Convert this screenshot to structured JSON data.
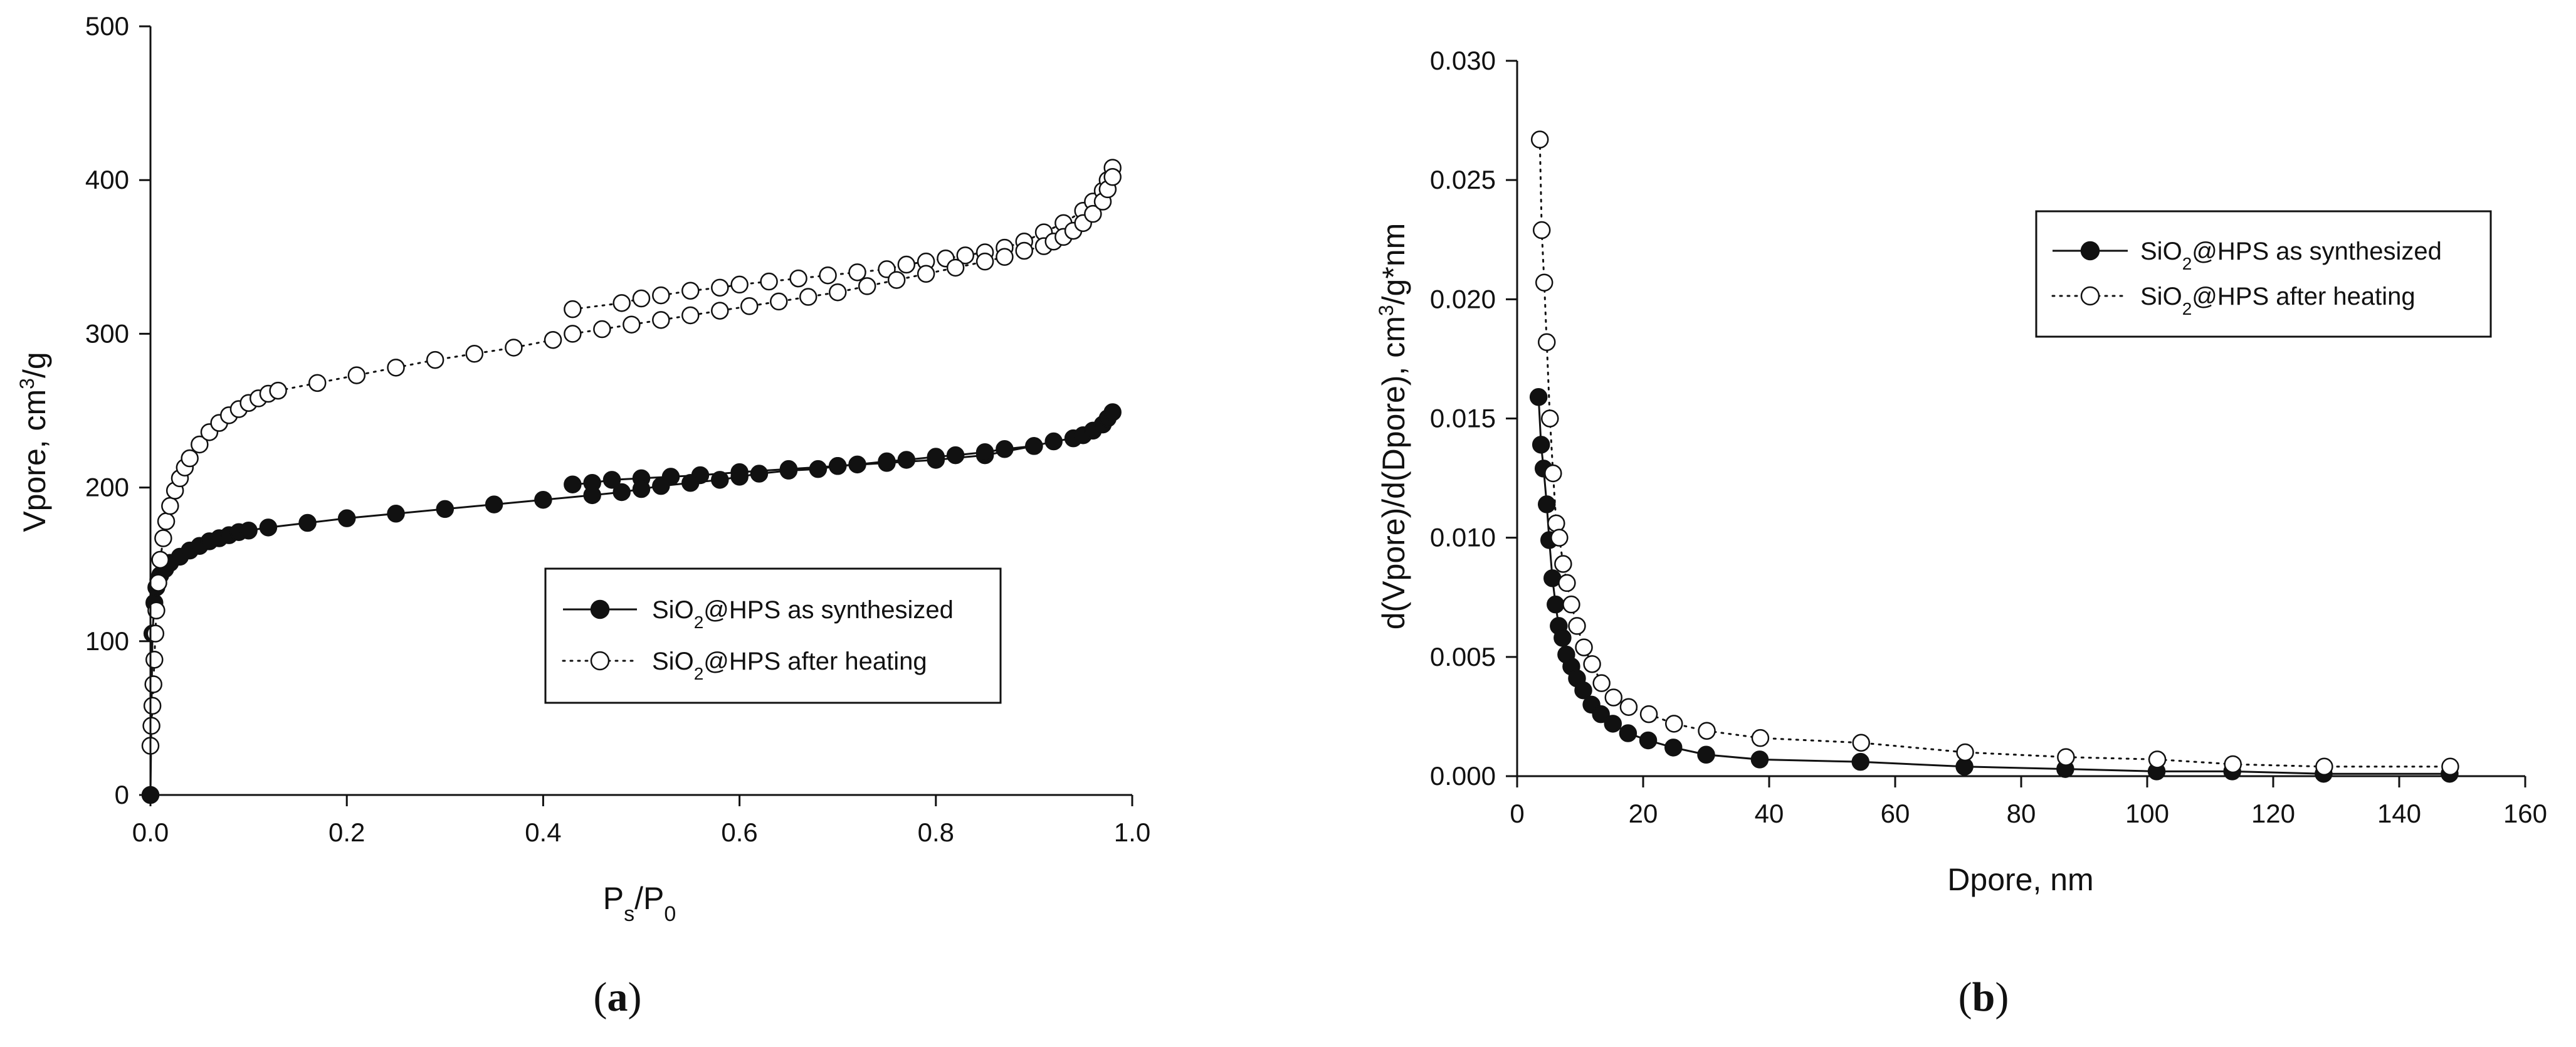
{
  "chart_data": [
    {
      "type": "scatter",
      "panel_label": "a",
      "xlabel": "P",
      "xlabel_sub1": "s",
      "xlabel_slash": "/P",
      "xlabel_sub2": "0",
      "ylabel": "Vpore, cm",
      "ylabel_sup": "3",
      "ylabel_tail": "/g",
      "xlim": [
        0,
        1.0
      ],
      "ylim": [
        0,
        500
      ],
      "xticks": [
        "0.0",
        "0.2",
        "0.4",
        "0.6",
        "0.8",
        "1.0"
      ],
      "yticks": [
        "0",
        "100",
        "200",
        "300",
        "400",
        "500"
      ],
      "legend": {
        "position": "center-right",
        "entries": [
          {
            "prefix": "SiO",
            "sub": "2",
            "suffix": "@HPS as synthesized"
          },
          {
            "prefix": "SiO",
            "sub": "2",
            "suffix": "@HPS after heating"
          }
        ]
      },
      "series": [
        {
          "name": "SiO2@HPS as synthesized",
          "marker": "filled-circle",
          "line": "solid",
          "x": [
            0.0,
            0.002,
            0.004,
            0.006,
            0.008,
            0.01,
            0.015,
            0.02,
            0.03,
            0.04,
            0.05,
            0.06,
            0.07,
            0.08,
            0.09,
            0.1,
            0.12,
            0.16,
            0.2,
            0.25,
            0.3,
            0.35,
            0.4,
            0.45,
            0.48,
            0.5,
            0.52,
            0.55,
            0.58,
            0.6,
            0.62,
            0.65,
            0.68,
            0.7,
            0.72,
            0.75,
            0.77,
            0.8,
            0.82,
            0.85,
            0.87,
            0.9,
            0.92,
            0.94,
            0.95,
            0.96,
            0.97,
            0.975,
            0.98
          ],
          "y": [
            0,
            105,
            125,
            135,
            140,
            143,
            147,
            151,
            155,
            159,
            162,
            165,
            167,
            169,
            171,
            172,
            174,
            177,
            180,
            183,
            186,
            189,
            192,
            195,
            197,
            199,
            201,
            203,
            205,
            207,
            209,
            211,
            212,
            214,
            215,
            217,
            218,
            220,
            221,
            223,
            225,
            227,
            230,
            232,
            234,
            237,
            241,
            245,
            249
          ],
          "x_desorption": [
            0.43,
            0.45,
            0.47,
            0.5,
            0.53,
            0.56,
            0.6,
            0.65,
            0.7,
            0.75,
            0.8,
            0.85,
            0.9
          ],
          "y_desorption": [
            202,
            203,
            205,
            206,
            207,
            208,
            210,
            212,
            214,
            216,
            218,
            221,
            227
          ]
        },
        {
          "name": "SiO2@HPS after heating",
          "marker": "open-circle",
          "line": "dotted",
          "x": [
            0.0,
            0.001,
            0.002,
            0.003,
            0.004,
            0.005,
            0.006,
            0.008,
            0.01,
            0.013,
            0.016,
            0.02,
            0.025,
            0.03,
            0.035,
            0.04,
            0.05,
            0.06,
            0.07,
            0.08,
            0.09,
            0.1,
            0.11,
            0.12,
            0.13,
            0.17,
            0.21,
            0.25,
            0.29,
            0.33,
            0.37,
            0.41,
            0.43,
            0.46,
            0.49,
            0.52,
            0.55,
            0.58,
            0.61,
            0.64,
            0.67,
            0.7,
            0.73,
            0.76,
            0.79,
            0.82,
            0.85,
            0.87,
            0.89,
            0.91,
            0.92,
            0.93,
            0.94,
            0.95,
            0.96,
            0.97,
            0.975,
            0.98
          ],
          "y": [
            32,
            45,
            58,
            72,
            88,
            105,
            120,
            138,
            153,
            167,
            178,
            188,
            198,
            206,
            213,
            219,
            228,
            236,
            242,
            247,
            251,
            255,
            258,
            261,
            263,
            268,
            273,
            278,
            283,
            287,
            291,
            296,
            300,
            303,
            306,
            309,
            312,
            315,
            318,
            321,
            324,
            327,
            331,
            335,
            339,
            343,
            347,
            350,
            354,
            357,
            360,
            363,
            367,
            372,
            378,
            386,
            394,
            402
          ],
          "x_desorption": [
            0.43,
            0.48,
            0.5,
            0.52,
            0.55,
            0.58,
            0.6,
            0.63,
            0.66,
            0.69,
            0.72,
            0.75,
            0.77,
            0.79,
            0.81,
            0.83,
            0.85,
            0.87,
            0.89,
            0.91,
            0.93,
            0.95,
            0.96,
            0.97,
            0.975,
            0.98
          ],
          "y_desorption": [
            316,
            320,
            323,
            325,
            328,
            330,
            332,
            334,
            336,
            338,
            340,
            342,
            345,
            347,
            349,
            351,
            353,
            356,
            360,
            366,
            372,
            380,
            386,
            393,
            400,
            408
          ]
        }
      ]
    },
    {
      "type": "scatter",
      "panel_label": "b",
      "xlabel": "Dpore, nm",
      "ylabel": "d(Vpore)/d(Dpore), cm",
      "ylabel_sup": "3",
      "ylabel_tail": "/g*nm",
      "xlim": [
        0,
        160
      ],
      "ylim": [
        0,
        0.03
      ],
      "xticks": [
        "0",
        "20",
        "40",
        "60",
        "80",
        "100",
        "120",
        "140",
        "160"
      ],
      "yticks": [
        "0.000",
        "0.005",
        "0.010",
        "0.015",
        "0.020",
        "0.025",
        "0.030"
      ],
      "legend": {
        "position": "top-right",
        "entries": [
          {
            "prefix": "SiO",
            "sub": "2",
            "suffix": "@HPS as synthesized"
          },
          {
            "prefix": "SiO",
            "sub": "2",
            "suffix": "@HPS after heating"
          }
        ]
      },
      "series": [
        {
          "name": "SiO2@HPS as synthesized",
          "marker": "filled-circle",
          "line": "solid",
          "x": [
            3.4,
            3.8,
            4.2,
            4.7,
            5.1,
            5.6,
            6.1,
            6.6,
            7.2,
            7.8,
            8.6,
            9.5,
            10.5,
            11.8,
            13.3,
            15.2,
            17.6,
            20.8,
            24.8,
            30.0,
            38.5,
            54.5,
            71.0,
            87.0,
            101.5,
            113.5,
            128.0,
            148.0
          ],
          "y": [
            0.0159,
            0.0139,
            0.0129,
            0.0114,
            0.0099,
            0.0083,
            0.0072,
            0.0063,
            0.0058,
            0.0051,
            0.0046,
            0.0041,
            0.0036,
            0.003,
            0.0026,
            0.0022,
            0.0018,
            0.0015,
            0.0012,
            0.0009,
            0.0007,
            0.0006,
            0.0004,
            0.0003,
            0.0002,
            0.0002,
            0.0001,
            0.0001
          ]
        },
        {
          "name": "SiO2@HPS after heating",
          "marker": "open-circle",
          "line": "dotted",
          "x": [
            3.6,
            3.9,
            4.3,
            4.7,
            5.2,
            5.7,
            6.2,
            6.7,
            7.3,
            7.9,
            8.6,
            9.5,
            10.6,
            11.9,
            13.4,
            15.3,
            17.7,
            20.9,
            24.9,
            30.1,
            38.6,
            54.6,
            71.1,
            87.1,
            101.6,
            113.6,
            128.1,
            148.1
          ],
          "y": [
            0.0267,
            0.0229,
            0.0207,
            0.0182,
            0.015,
            0.0127,
            0.0106,
            0.01,
            0.0089,
            0.0081,
            0.0072,
            0.0063,
            0.0054,
            0.0047,
            0.0039,
            0.0033,
            0.0029,
            0.0026,
            0.0022,
            0.0019,
            0.0016,
            0.0014,
            0.001,
            0.0008,
            0.0007,
            0.0005,
            0.0004,
            0.0004
          ]
        }
      ]
    }
  ]
}
